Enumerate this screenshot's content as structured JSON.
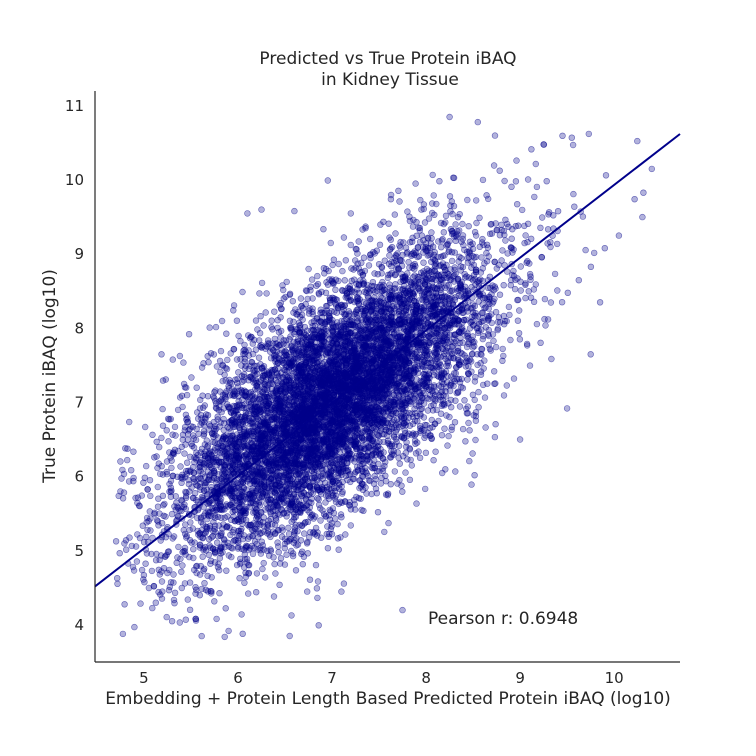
{
  "chart_data": {
    "type": "scatter",
    "title_line1": "Predicted vs True Protein iBAQ",
    "title_line2": "in Kidney Tissue",
    "xlabel": "Embedding + Protein Length Based Predicted Protein iBAQ (log10)",
    "ylabel": "True Protein iBAQ (log10)",
    "xlim": [
      4.48,
      10.7
    ],
    "ylim": [
      3.5,
      11.2
    ],
    "xticks": [
      "5",
      "6",
      "7",
      "8",
      "9",
      "10"
    ],
    "yticks": [
      "4",
      "5",
      "6",
      "7",
      "8",
      "9",
      "10",
      "11"
    ],
    "grid": false,
    "annotation": "Pearson r: 0.6948",
    "pearson_r": 0.6948,
    "point_color": "#00008b",
    "point_edge_color": "#00008b",
    "point_alpha": 0.3,
    "approx_point_count": 8000,
    "point_cloud": {
      "x_mean": 7.0,
      "x_std": 0.85,
      "y_mean": 7.05,
      "y_std": 1.02,
      "correlation": 0.6948,
      "x_range": [
        4.7,
        10.4
      ],
      "y_range": [
        3.8,
        10.9
      ]
    },
    "outlier_points": [
      {
        "x": 4.75,
        "y": 5.8
      },
      {
        "x": 8.25,
        "y": 10.85
      },
      {
        "x": 8.55,
        "y": 10.78
      },
      {
        "x": 9.25,
        "y": 10.48
      },
      {
        "x": 9.55,
        "y": 10.57
      },
      {
        "x": 10.4,
        "y": 10.15
      },
      {
        "x": 10.3,
        "y": 9.5
      },
      {
        "x": 10.05,
        "y": 9.25
      },
      {
        "x": 9.9,
        "y": 9.08
      },
      {
        "x": 9.85,
        "y": 8.35
      },
      {
        "x": 9.75,
        "y": 7.65
      },
      {
        "x": 9.5,
        "y": 6.92
      },
      {
        "x": 9.0,
        "y": 6.5
      },
      {
        "x": 6.25,
        "y": 9.6
      },
      {
        "x": 6.6,
        "y": 9.58
      },
      {
        "x": 6.1,
        "y": 9.55
      },
      {
        "x": 5.3,
        "y": 4.05
      },
      {
        "x": 5.55,
        "y": 4.08
      },
      {
        "x": 5.9,
        "y": 3.92
      },
      {
        "x": 6.05,
        "y": 3.88
      },
      {
        "x": 6.55,
        "y": 3.85
      },
      {
        "x": 5.25,
        "y": 4.7
      },
      {
        "x": 5.0,
        "y": 4.67
      },
      {
        "x": 5.05,
        "y": 5.4
      },
      {
        "x": 5.45,
        "y": 7.2
      },
      {
        "x": 5.48,
        "y": 7.92
      },
      {
        "x": 7.1,
        "y": 4.45
      },
      {
        "x": 7.75,
        "y": 4.2
      },
      {
        "x": 7.2,
        "y": 9.55
      },
      {
        "x": 7.95,
        "y": 9.6
      }
    ],
    "fit_line": {
      "x": [
        4.48,
        10.7
      ],
      "y": [
        4.52,
        10.62
      ],
      "color": "#00008b"
    }
  }
}
